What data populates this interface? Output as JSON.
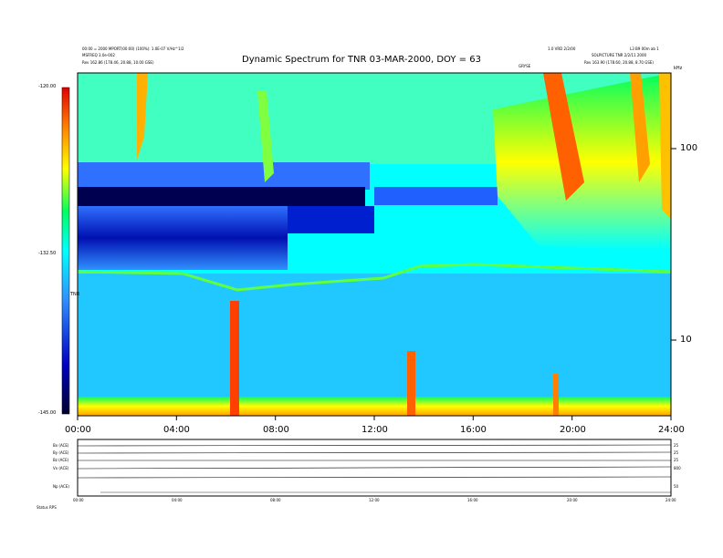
{
  "header": {
    "left_line1": "00:00 = 2000 MPORT(00:00) (100%): 1.0E-07 V/Hz^1/2",
    "left_line2": "MSFREQ 3.0e-002",
    "left_line3": "Rev   162.86 (178.46, 20.88, 10.00 GSE)",
    "right_line1": "1.0 VRD 2/2/00",
    "right_line1b": "L3 B9 00m ab 1",
    "right_line2": "SOLPICTURE TNR 2/2/11 2000",
    "right_line3": "Rev   163.90 (178.60, 20.88, 8.70 GSE)",
    "marker_label": "GRYSE"
  },
  "chart_data": {
    "type": "heatmap",
    "title": "Dynamic Spectrum for TNR 03-MAR-2000, DOY = 63",
    "x_ticks": [
      "00:00",
      "04:00",
      "08:00",
      "12:00",
      "16:00",
      "20:00",
      "24:00"
    ],
    "x_range": [
      0,
      24
    ],
    "y_scale": "log",
    "y_unit": "kHz",
    "y_ticks": [
      "100",
      "10"
    ],
    "colorbar": {
      "ticks": [
        "-120.00",
        "-132.50",
        "-145.00"
      ],
      "range": [
        -145,
        -120
      ],
      "label": "TNR",
      "colors": [
        "#000030",
        "#0000c0",
        "#3090ff",
        "#00ffff",
        "#00ff60",
        "#ffff00",
        "#ff8000",
        "#e00000"
      ]
    },
    "background_level_color": "#00ffff",
    "features": [
      {
        "name": "",
        "start": 2.4,
        "end": 2.9
      },
      {
        "name": "",
        "start": 7.2,
        "end": 8.2
      },
      {
        "name": "",
        "start": 17.0,
        "end": 24.0
      }
    ]
  },
  "lower_panel": {
    "row_labels": [
      "Bx (ACE)",
      "By (ACE)",
      "Bz (ACE)",
      "Vx (ACE)",
      "Np (ACE)"
    ],
    "right_labels": [
      "25",
      "25",
      "25",
      "800",
      "50"
    ],
    "x_ticks": [
      "00:00",
      "04:00",
      "08:00",
      "12:00",
      "16:00",
      "20:00",
      "24:00"
    ],
    "footer": "Status   RPS"
  }
}
